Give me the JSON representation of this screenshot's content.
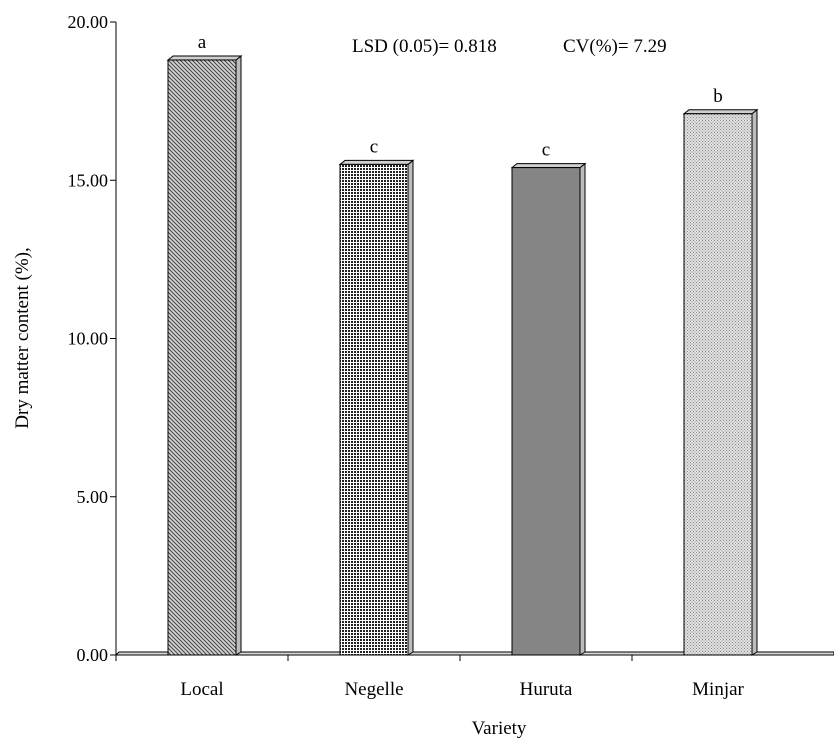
{
  "chart_data": {
    "type": "bar",
    "categories": [
      "Local",
      "Negelle",
      "Huruta",
      "Minjar"
    ],
    "values": [
      18.8,
      15.5,
      15.4,
      17.1
    ],
    "significance_letters": [
      "a",
      "c",
      "c",
      "b"
    ],
    "xlabel": "Variety",
    "ylabel": "Dry matter content (%),",
    "ylim": [
      0,
      20
    ],
    "yticks": [
      "0.00",
      "5.00",
      "10.00",
      "15.00",
      "20.00"
    ],
    "annotations": {
      "lsd": "LSD (0.05)= 0.818",
      "cv": "CV(%)= 7.29"
    },
    "grid": false,
    "legend": "none",
    "bar_fills": [
      {
        "pattern": "diagonal-hatch",
        "color": "#555555"
      },
      {
        "pattern": "dots",
        "color": "#222222"
      },
      {
        "pattern": "solid",
        "color": "#858585"
      },
      {
        "pattern": "fine-dots",
        "color": "#9a9a9a"
      }
    ]
  }
}
